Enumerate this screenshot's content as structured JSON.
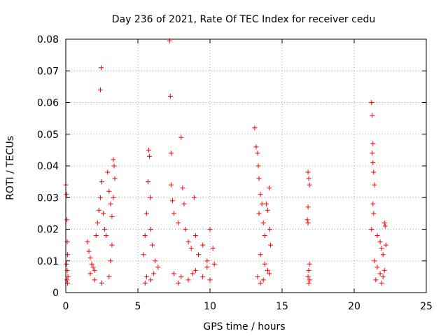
{
  "chart_data": {
    "type": "scatter",
    "title": "Day 236 of 2021, Rate Of TEC Index for receiver cedu",
    "xlabel": "GPS time / hours",
    "ylabel": "ROTI / TECUs",
    "xlim": [
      0,
      25
    ],
    "ylim": [
      0,
      0.08
    ],
    "x_ticks": [
      0,
      5,
      10,
      15,
      20,
      25
    ],
    "y_ticks": [
      0,
      0.01,
      0.02,
      0.03,
      0.04,
      0.05,
      0.06,
      0.07,
      0.08
    ],
    "x_tick_labels": [
      "0",
      "5",
      "10",
      "15",
      "20",
      "25"
    ],
    "y_tick_labels": [
      "0",
      "0.01",
      "0.02",
      "0.03",
      "0.04",
      "0.05",
      "0.06",
      "0.07",
      "0.08"
    ],
    "grid": true,
    "marker": "+",
    "color": "#ff0000",
    "series": [
      {
        "name": "ROTI",
        "points": [
          [
            0.0,
            0.034
          ],
          [
            0.05,
            0.031
          ],
          [
            0.08,
            0.023
          ],
          [
            0.1,
            0.016
          ],
          [
            0.12,
            0.012
          ],
          [
            0.05,
            0.009
          ],
          [
            0.1,
            0.007
          ],
          [
            0.15,
            0.005
          ],
          [
            0.08,
            0.004
          ],
          [
            0.12,
            0.003
          ],
          [
            1.5,
            0.016
          ],
          [
            1.6,
            0.013
          ],
          [
            1.7,
            0.011
          ],
          [
            1.8,
            0.009
          ],
          [
            1.9,
            0.008
          ],
          [
            2.0,
            0.007
          ],
          [
            2.1,
            0.018
          ],
          [
            2.2,
            0.022
          ],
          [
            2.3,
            0.026
          ],
          [
            2.4,
            0.03
          ],
          [
            2.45,
            0.071
          ],
          [
            2.4,
            0.064
          ],
          [
            2.5,
            0.035
          ],
          [
            2.6,
            0.025
          ],
          [
            2.7,
            0.02
          ],
          [
            2.8,
            0.018
          ],
          [
            2.9,
            0.038
          ],
          [
            3.0,
            0.032
          ],
          [
            3.1,
            0.028
          ],
          [
            3.2,
            0.024
          ],
          [
            3.3,
            0.042
          ],
          [
            3.35,
            0.04
          ],
          [
            3.4,
            0.036
          ],
          [
            3.3,
            0.03
          ],
          [
            3.2,
            0.015
          ],
          [
            3.1,
            0.01
          ],
          [
            2.0,
            0.004
          ],
          [
            2.5,
            0.003
          ],
          [
            3.0,
            0.005
          ],
          [
            1.7,
            0.006
          ],
          [
            5.4,
            0.012
          ],
          [
            5.5,
            0.018
          ],
          [
            5.6,
            0.025
          ],
          [
            5.7,
            0.035
          ],
          [
            5.75,
            0.045
          ],
          [
            5.8,
            0.043
          ],
          [
            5.85,
            0.03
          ],
          [
            5.9,
            0.02
          ],
          [
            6.0,
            0.015
          ],
          [
            6.2,
            0.01
          ],
          [
            6.4,
            0.008
          ],
          [
            5.6,
            0.005
          ],
          [
            5.9,
            0.004
          ],
          [
            6.1,
            0.006
          ],
          [
            5.5,
            0.003
          ],
          [
            7.2,
            0.0795
          ],
          [
            7.25,
            0.062
          ],
          [
            7.3,
            0.044
          ],
          [
            7.3,
            0.034
          ],
          [
            7.4,
            0.029
          ],
          [
            7.5,
            0.025
          ],
          [
            7.8,
            0.022
          ],
          [
            8.0,
            0.049
          ],
          [
            8.1,
            0.033
          ],
          [
            8.2,
            0.028
          ],
          [
            8.3,
            0.02
          ],
          [
            8.5,
            0.016
          ],
          [
            8.7,
            0.014
          ],
          [
            8.9,
            0.03
          ],
          [
            9.0,
            0.018
          ],
          [
            9.2,
            0.012
          ],
          [
            9.5,
            0.015
          ],
          [
            9.8,
            0.01
          ],
          [
            10.0,
            0.02
          ],
          [
            10.2,
            0.014
          ],
          [
            10.3,
            0.009
          ],
          [
            7.5,
            0.006
          ],
          [
            8.0,
            0.005
          ],
          [
            8.5,
            0.004
          ],
          [
            9.0,
            0.007
          ],
          [
            9.5,
            0.005
          ],
          [
            10.0,
            0.004
          ],
          [
            7.8,
            0.003
          ],
          [
            8.8,
            0.006
          ],
          [
            9.8,
            0.008
          ],
          [
            13.1,
            0.052
          ],
          [
            13.2,
            0.046
          ],
          [
            13.3,
            0.044
          ],
          [
            13.35,
            0.04
          ],
          [
            13.4,
            0.036
          ],
          [
            13.5,
            0.031
          ],
          [
            13.6,
            0.028
          ],
          [
            13.4,
            0.025
          ],
          [
            13.7,
            0.022
          ],
          [
            13.8,
            0.018
          ],
          [
            13.9,
            0.028
          ],
          [
            14.0,
            0.026
          ],
          [
            14.1,
            0.033
          ],
          [
            14.15,
            0.02
          ],
          [
            14.2,
            0.015
          ],
          [
            13.5,
            0.012
          ],
          [
            13.8,
            0.009
          ],
          [
            14.0,
            0.007
          ],
          [
            13.3,
            0.005
          ],
          [
            13.7,
            0.004
          ],
          [
            14.1,
            0.006
          ],
          [
            13.5,
            0.003
          ],
          [
            16.8,
            0.038
          ],
          [
            16.85,
            0.036
          ],
          [
            16.9,
            0.034
          ],
          [
            16.8,
            0.027
          ],
          [
            16.75,
            0.023
          ],
          [
            16.8,
            0.022
          ],
          [
            16.9,
            0.009
          ],
          [
            16.85,
            0.007
          ],
          [
            16.8,
            0.005
          ],
          [
            16.9,
            0.004
          ],
          [
            16.85,
            0.003
          ],
          [
            21.2,
            0.06
          ],
          [
            21.25,
            0.056
          ],
          [
            21.3,
            0.047
          ],
          [
            21.25,
            0.044
          ],
          [
            21.3,
            0.041
          ],
          [
            21.35,
            0.038
          ],
          [
            21.4,
            0.034
          ],
          [
            21.3,
            0.028
          ],
          [
            21.35,
            0.025
          ],
          [
            21.2,
            0.02
          ],
          [
            21.6,
            0.018
          ],
          [
            21.8,
            0.016
          ],
          [
            21.9,
            0.014
          ],
          [
            22.0,
            0.012
          ],
          [
            22.1,
            0.022
          ],
          [
            22.15,
            0.021
          ],
          [
            22.2,
            0.015
          ],
          [
            21.4,
            0.01
          ],
          [
            21.6,
            0.008
          ],
          [
            21.8,
            0.006
          ],
          [
            22.0,
            0.005
          ],
          [
            21.5,
            0.004
          ],
          [
            21.9,
            0.003
          ],
          [
            22.1,
            0.007
          ]
        ]
      }
    ]
  }
}
